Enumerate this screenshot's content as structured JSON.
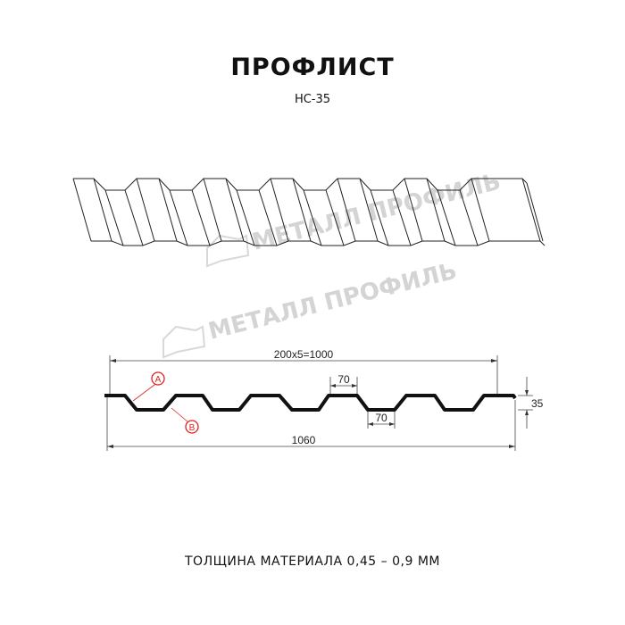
{
  "title": "ПРОФЛИСТ",
  "subtitle": "НС-35",
  "watermark": "МЕТАЛЛ ПРОФИЛЬ",
  "dimensions": {
    "pitch_total": "200x5=1000",
    "total_width": "1060",
    "top_flat": "70",
    "bottom_flat": "70",
    "height": "35"
  },
  "markers": {
    "a": "A",
    "b": "B"
  },
  "marker_color": "#e02020",
  "material_note": "ТОЛЩИНА МАТЕРИАЛА 0,45 – 0,9 ММ"
}
